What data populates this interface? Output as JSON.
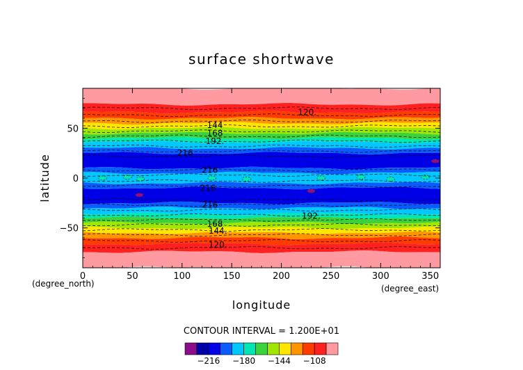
{
  "chart_data": {
    "type": "contour",
    "title": "surface shortwave",
    "xlabel": "longitude",
    "ylabel": "latitude",
    "x_unit_label": "(degree_east)",
    "y_unit_label": "(degree_north)",
    "xlim": [
      0,
      360
    ],
    "ylim": [
      -90,
      90
    ],
    "x_ticks": [
      {
        "value": 0,
        "label": "0"
      },
      {
        "value": 50,
        "label": "50"
      },
      {
        "value": 100,
        "label": "100"
      },
      {
        "value": 150,
        "label": "150"
      },
      {
        "value": 200,
        "label": "200"
      },
      {
        "value": 250,
        "label": "250"
      },
      {
        "value": 300,
        "label": "300"
      },
      {
        "value": 350,
        "label": "350"
      }
    ],
    "y_ticks": [
      {
        "value": 50,
        "label": "50"
      },
      {
        "value": 0,
        "label": "0"
      },
      {
        "value": -50,
        "label": "−50"
      }
    ],
    "contour_interval_label": "CONTOUR INTERVAL = 1.200E+01",
    "levels": [
      -228,
      -216,
      -204,
      -192,
      -180,
      -168,
      -156,
      -144,
      -132,
      -120,
      -108
    ],
    "colors": [
      "#8a0e8a",
      "#0000a8",
      "#0000e6",
      "#0a5cff",
      "#00c8ff",
      "#00e6b4",
      "#3cd23c",
      "#a0e600",
      "#ffe600",
      "#ff9600",
      "#ff3c00",
      "#ff2020",
      "#ff9aa0"
    ],
    "bands": [
      {
        "lat_min": 74,
        "lat_max": 90,
        "color_index": 12
      },
      {
        "lat_min": 66,
        "lat_max": 74,
        "color_index": 11
      },
      {
        "lat_min": 60,
        "lat_max": 66,
        "color_index": 10
      },
      {
        "lat_min": 55,
        "lat_max": 60,
        "color_index": 9
      },
      {
        "lat_min": 50,
        "lat_max": 55,
        "color_index": 8
      },
      {
        "lat_min": 45,
        "lat_max": 50,
        "color_index": 7
      },
      {
        "lat_min": 40,
        "lat_max": 45,
        "color_index": 6
      },
      {
        "lat_min": 36,
        "lat_max": 40,
        "color_index": 5
      },
      {
        "lat_min": 30,
        "lat_max": 36,
        "color_index": 4
      },
      {
        "lat_min": 25,
        "lat_max": 30,
        "color_index": 3
      },
      {
        "lat_min": 10,
        "lat_max": 25,
        "color_index": 2
      },
      {
        "lat_min": 5,
        "lat_max": 10,
        "color_index": 3
      },
      {
        "lat_min": -5,
        "lat_max": 5,
        "color_index": 4
      },
      {
        "lat_min": -10,
        "lat_max": -5,
        "color_index": 3
      },
      {
        "lat_min": -25,
        "lat_max": -10,
        "color_index": 2
      },
      {
        "lat_min": -30,
        "lat_max": -25,
        "color_index": 3
      },
      {
        "lat_min": -36,
        "lat_max": -30,
        "color_index": 4
      },
      {
        "lat_min": -40,
        "lat_max": -36,
        "color_index": 5
      },
      {
        "lat_min": -45,
        "lat_max": -40,
        "color_index": 6
      },
      {
        "lat_min": -50,
        "lat_max": -45,
        "color_index": 7
      },
      {
        "lat_min": -55,
        "lat_max": -50,
        "color_index": 8
      },
      {
        "lat_min": -60,
        "lat_max": -55,
        "color_index": 9
      },
      {
        "lat_min": -66,
        "lat_max": -60,
        "color_index": 10
      },
      {
        "lat_min": -74,
        "lat_max": -66,
        "color_index": 11
      },
      {
        "lat_min": -90,
        "lat_max": -74,
        "color_index": 12
      }
    ],
    "contour_lines": [
      70,
      63,
      57,
      52,
      47,
      42,
      37,
      32,
      27,
      22,
      8,
      3,
      -3,
      -8,
      -22,
      -27,
      -32,
      -37,
      -42,
      -47,
      -52,
      -57,
      -63,
      -70
    ],
    "contour_labels": [
      {
        "text": "120.",
        "lon": 226,
        "lat": 66
      },
      {
        "text": "144",
        "lon": 133,
        "lat": 53
      },
      {
        "text": "168",
        "lon": 133,
        "lat": 45
      },
      {
        "text": "192.",
        "lon": 133,
        "lat": 37
      },
      {
        "text": "216",
        "lon": 103,
        "lat": 25
      },
      {
        "text": "216",
        "lon": 128,
        "lat": 8
      },
      {
        "text": "216",
        "lon": 126,
        "lat": -10
      },
      {
        "text": "216",
        "lon": 128,
        "lat": -27
      },
      {
        "text": "192.",
        "lon": 230,
        "lat": -38
      },
      {
        "text": "168",
        "lon": 133,
        "lat": -46
      },
      {
        "text": "144.",
        "lon": 136,
        "lat": -53
      },
      {
        "text": "120.",
        "lon": 136,
        "lat": -67
      }
    ],
    "patches": [
      {
        "lon": 20,
        "lat": 0,
        "color_index": 5
      },
      {
        "lon": 45,
        "lat": 1,
        "color_index": 5
      },
      {
        "lon": 58,
        "lat": -1,
        "color_index": 5
      },
      {
        "lon": 130,
        "lat": 0,
        "color_index": 5
      },
      {
        "lon": 165,
        "lat": -1,
        "color_index": 5
      },
      {
        "lon": 240,
        "lat": 0,
        "color_index": 5
      },
      {
        "lon": 280,
        "lat": 1,
        "color_index": 5
      },
      {
        "lon": 310,
        "lat": -1,
        "color_index": 5
      },
      {
        "lon": 345,
        "lat": 1,
        "color_index": 5
      },
      {
        "lon": 230,
        "lat": -13,
        "color_index": 0
      },
      {
        "lon": 355,
        "lat": 17,
        "color_index": 0
      },
      {
        "lon": 57,
        "lat": -17,
        "color_index": 0
      }
    ],
    "colorbar_labels": [
      {
        "value": -216,
        "label": "−216"
      },
      {
        "value": -180,
        "label": "−180"
      },
      {
        "value": -144,
        "label": "−144"
      },
      {
        "value": -108,
        "label": "−108"
      }
    ]
  }
}
